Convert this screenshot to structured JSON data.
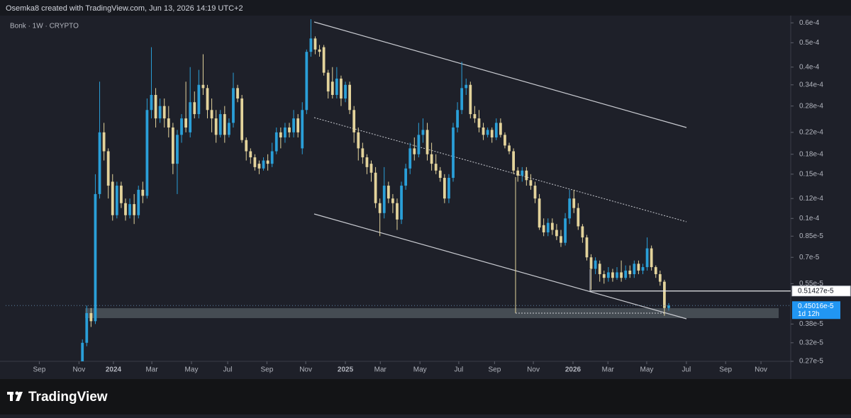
{
  "header": "Osemka8 created with TradingView.com, Jun 13, 2026 14:19 UTC+2",
  "footer": "TradingView",
  "chart_data": {
    "type": "candlestick",
    "title": "Bonk · 1W · CRYPTO",
    "log_scale": true,
    "up_color": "#2a9fd8",
    "down_color": "#e3d39b",
    "open": [
      2.6e-06,
      3.2e-06,
      4.2e-06,
      3.9e-06,
      1.25e-05,
      2.2e-05,
      1.85e-05,
      1.4e-05,
      1.03e-05,
      1.35e-05,
      1.15e-05,
      1.03e-05,
      1.14e-05,
      1.03e-05,
      1.3e-05,
      1.23e-05,
      2.7e-05,
      3.1e-05,
      2.5e-05,
      2.8e-05,
      2.5e-05,
      2.3e-05,
      1.65e-05,
      2.15e-05,
      2.5e-05,
      2.2e-05,
      2.9e-05,
      2.6e-05,
      3.4e-05,
      3.3e-05,
      2.7e-05,
      2.5e-05,
      2.15e-05,
      2.6e-05,
      2.15e-05,
      2.4e-05,
      3.3e-05,
      3e-05,
      2.05e-05,
      1.85e-05,
      1.75e-05,
      1.65e-05,
      1.58e-05,
      1.7e-05,
      1.65e-05,
      1.85e-05,
      2.2e-05,
      2.1e-05,
      2.3e-05,
      2.2e-05,
      2.5e-05,
      1.9e-05,
      2.7e-05,
      4.6e-05,
      5.2e-05,
      4.7e-05,
      4.8e-05,
      3.8e-05,
      3.5e-05,
      3.1e-05,
      3.6e-05,
      3e-05,
      3.4e-05,
      2.7e-05,
      2.2e-05,
      1.9e-05,
      1.75e-05,
      1.65e-05,
      1.52e-05,
      1.15e-05,
      1.05e-05,
      1.35e-05,
      1.2e-05,
      1.15e-05,
      9.9e-06,
      1.35e-05,
      1.58e-05,
      1.9e-05,
      1.8e-05,
      2.15e-05,
      2.25e-05,
      1.8e-05,
      1.65e-05,
      1.55e-05,
      1.45e-05,
      1.2e-05,
      1.45e-05,
      2.3e-05,
      2.7e-05,
      3.3e-05,
      3.4e-05,
      2.6e-05,
      2.5e-05,
      2.3e-05,
      2.15e-05,
      2.25e-05,
      2.1e-05,
      2.4e-05,
      2.15e-05,
      1.95e-05,
      1.85e-05,
      1.55e-05,
      1.48e-05,
      1.55e-05,
      1.42e-05,
      1.35e-05,
      1.2e-05,
      9.4e-06,
      8.8e-06,
      9.6e-06,
      9e-06,
      8.5e-06,
      8e-06,
      1e-05,
      1.2e-05,
      1.1e-05,
      9.3e-06,
      8.4e-06,
      7e-06,
      6.3e-06,
      6.6e-06,
      6e-06,
      5.8e-06,
      6.1e-06,
      5.8e-06,
      6.1e-06,
      5.8e-06,
      6.2e-06,
      6e-06,
      6.6e-06,
      6.2e-06,
      6.4e-06,
      7.6e-06,
      6.4e-06,
      6e-06,
      5.6e-06,
      4.4e-06
    ],
    "high": [
      3.3e-06,
      4.5e-06,
      4.4e-06,
      1.5e-05,
      3.5e-05,
      2.4e-05,
      1.9e-05,
      1.5e-05,
      1.4e-05,
      1.4e-05,
      1.2e-05,
      1.2e-05,
      1.25e-05,
      1.35e-05,
      1.4e-05,
      3e-05,
      4.8e-05,
      3.3e-05,
      3e-05,
      3e-05,
      2.8e-05,
      2.4e-05,
      2.25e-05,
      2.6e-05,
      3.5e-05,
      4e-05,
      3.2e-05,
      3.9e-05,
      4.5e-05,
      3.4e-05,
      3e-05,
      2.7e-05,
      2.7e-05,
      2.8e-05,
      2.5e-05,
      3.8e-05,
      3.4e-05,
      3.1e-05,
      2.1e-05,
      1.9e-05,
      1.8e-05,
      1.7e-05,
      1.75e-05,
      1.8e-05,
      2e-05,
      2.3e-05,
      2.3e-05,
      2.4e-05,
      2.4e-05,
      2.7e-05,
      2.6e-05,
      2.9e-05,
      4.7e-05,
      6.2e-05,
      5.3e-05,
      4.9e-05,
      4.9e-05,
      3.9e-05,
      4e-05,
      4e-05,
      3.7e-05,
      3.5e-05,
      3.5e-05,
      2.8e-05,
      2.3e-05,
      2e-05,
      1.8e-05,
      1.7e-05,
      1.6e-05,
      1.2e-05,
      1.6e-05,
      1.4e-05,
      1.25e-05,
      1.2e-05,
      1.4e-05,
      1.65e-05,
      2e-05,
      2.1e-05,
      2.4e-05,
      2.5e-05,
      2.4e-05,
      2e-05,
      1.8e-05,
      1.6e-05,
      1.5e-05,
      1.5e-05,
      2.4e-05,
      2.9e-05,
      4.2e-05,
      3.6e-05,
      3.5e-05,
      2.8e-05,
      2.7e-05,
      2.4e-05,
      2.3e-05,
      2.3e-05,
      2.5e-05,
      2.5e-05,
      2.2e-05,
      2e-05,
      1.9e-05,
      1.6e-05,
      1.6e-05,
      1.6e-05,
      1.5e-05,
      1.4e-05,
      1.25e-05,
      1e-05,
      1e-05,
      1e-05,
      9.5e-06,
      9e-06,
      1.05e-05,
      1.3e-05,
      1.3e-05,
      1.15e-05,
      9.5e-06,
      8.6e-06,
      7.2e-06,
      7e-06,
      6.8e-06,
      6.2e-06,
      6.4e-06,
      6.3e-06,
      6.4e-06,
      6.8e-06,
      6.5e-06,
      6.5e-06,
      6.8e-06,
      6.8e-06,
      6.6e-06,
      8.4e-06,
      7.8e-06,
      6.5e-06,
      6.2e-06,
      5.7e-06,
      4.6e-06
    ],
    "low": [
      2.5e-06,
      3.1e-06,
      3.7e-06,
      3.8e-06,
      1.2e-05,
      1.7e-05,
      1.2e-05,
      9.8e-06,
      1e-05,
      1.1e-05,
      9.8e-06,
      1e-05,
      9.5e-06,
      1e-05,
      1.15e-05,
      1.2e-05,
      2.5e-05,
      2.3e-05,
      2.4e-05,
      2.3e-05,
      2.1e-05,
      1.5e-05,
      1.25e-05,
      2e-05,
      2.2e-05,
      2.1e-05,
      2.5e-05,
      2.5e-05,
      3.1e-05,
      2.5e-05,
      2.2e-05,
      2e-05,
      2.1e-05,
      2e-05,
      2.1e-05,
      2.3e-05,
      2.9e-05,
      2e-05,
      1.7e-05,
      1.65e-05,
      1.55e-05,
      1.5e-05,
      1.55e-05,
      1.55e-05,
      1.6e-05,
      1.8e-05,
      1.9e-05,
      2e-05,
      2.1e-05,
      2.1e-05,
      2.1e-05,
      1.8e-05,
      2.6e-05,
      4.4e-05,
      4.5e-05,
      4.4e-05,
      3.7e-05,
      3e-05,
      3e-05,
      3e-05,
      2.8e-05,
      2.9e-05,
      2.6e-05,
      2e-05,
      1.7e-05,
      1.65e-05,
      1.5e-05,
      1.4e-05,
      1.1e-05,
      8.5e-06,
      1e-05,
      1.15e-05,
      1.05e-05,
      9e-06,
      9.5e-06,
      1.3e-05,
      1.5e-05,
      1.7e-05,
      1.75e-05,
      2e-05,
      1.7e-05,
      1.55e-05,
      1.5e-05,
      1.4e-05,
      1.15e-05,
      1.15e-05,
      1.4e-05,
      2.2e-05,
      2.6e-05,
      3.1e-05,
      2.5e-05,
      2.4e-05,
      2.2e-05,
      2.05e-05,
      2.1e-05,
      2e-05,
      2.05e-05,
      2.1e-05,
      1.9e-05,
      1.8e-05,
      1.5e-05,
      1.4e-05,
      1.4e-05,
      1.35e-05,
      1.3e-05,
      1.15e-05,
      9e-06,
      8.5e-06,
      8.5e-06,
      8.6e-06,
      8.2e-06,
      7.7e-06,
      7.8e-06,
      9.5e-06,
      1.05e-05,
      9e-06,
      8e-06,
      6.8e-06,
      5.2e-06,
      6e-06,
      5.6e-06,
      5.5e-06,
      5.6e-06,
      5.6e-06,
      5.7e-06,
      5.6e-06,
      5.7e-06,
      5.8e-06,
      5.8e-06,
      6e-06,
      6e-06,
      6.2e-06,
      6.2e-06,
      5.8e-06,
      5.4e-06,
      4.1e-06,
      4.3e-06
    ],
    "close": [
      3.2e-06,
      4.2e-06,
      3.9e-06,
      1.25e-05,
      2.2e-05,
      1.85e-05,
      1.35e-05,
      1.03e-05,
      1.35e-05,
      1.15e-05,
      1.03e-05,
      1.14e-05,
      1.03e-05,
      1.3e-05,
      1.23e-05,
      2.7e-05,
      3.1e-05,
      2.5e-05,
      2.8e-05,
      2.5e-05,
      2.3e-05,
      1.65e-05,
      2.15e-05,
      2.5e-05,
      2.3e-05,
      2.9e-05,
      2.6e-05,
      3.4e-05,
      3.3e-05,
      2.7e-05,
      2.5e-05,
      2.15e-05,
      2.6e-05,
      2.15e-05,
      2.4e-05,
      3.3e-05,
      3e-05,
      2.05e-05,
      1.85e-05,
      1.75e-05,
      1.6e-05,
      1.58e-05,
      1.7e-05,
      1.65e-05,
      1.85e-05,
      2.2e-05,
      2.1e-05,
      2.3e-05,
      2.2e-05,
      2.5e-05,
      2.2e-05,
      2.7e-05,
      4.6e-05,
      5.2e-05,
      4.7e-05,
      4.6e-05,
      3.8e-05,
      3.2e-05,
      3.1e-05,
      3.6e-05,
      3e-05,
      3.4e-05,
      2.7e-05,
      2.2e-05,
      1.9e-05,
      1.75e-05,
      1.6e-05,
      1.52e-05,
      1.15e-05,
      1.05e-05,
      1.35e-05,
      1.2e-05,
      1.15e-05,
      9.9e-06,
      1.35e-05,
      1.58e-05,
      1.9e-05,
      1.8e-05,
      2.15e-05,
      2.25e-05,
      1.8e-05,
      1.65e-05,
      1.55e-05,
      1.45e-05,
      1.2e-05,
      1.45e-05,
      2.3e-05,
      2.7e-05,
      3.3e-05,
      3.4e-05,
      2.6e-05,
      2.5e-05,
      2.3e-05,
      2.15e-05,
      2.25e-05,
      2.1e-05,
      2.4e-05,
      2.15e-05,
      1.95e-05,
      1.85e-05,
      1.55e-05,
      1.48e-05,
      1.55e-05,
      1.42e-05,
      1.35e-05,
      1.2e-05,
      9.2e-06,
      8.8e-06,
      9.6e-06,
      9e-06,
      8.5e-06,
      8e-06,
      1e-05,
      1.2e-05,
      1.1e-05,
      9.3e-06,
      8.4e-06,
      7e-06,
      6.3e-06,
      6.8e-06,
      6e-06,
      5.8e-06,
      6.1e-06,
      5.8e-06,
      6.1e-06,
      5.8e-06,
      6.2e-06,
      6e-06,
      6.6e-06,
      6.2e-06,
      6.4e-06,
      7.6e-06,
      6.4e-06,
      6e-06,
      5.6e-06,
      4.4e-06,
      4.5016e-06
    ],
    "xlim": [
      -17.8,
      164.3
    ],
    "xticks": [
      {
        "value": -10.0,
        "label": "Sep"
      },
      {
        "value": -0.8,
        "label": "Nov"
      },
      {
        "value": 7.2,
        "label": "2024"
      },
      {
        "value": 16.1,
        "label": "Mar"
      },
      {
        "value": 25.3,
        "label": "May"
      },
      {
        "value": 33.7,
        "label": "Jul"
      },
      {
        "value": 42.8,
        "label": "Sep"
      },
      {
        "value": 51.8,
        "label": "Nov"
      },
      {
        "value": 61.0,
        "label": "2025"
      },
      {
        "value": 69.1,
        "label": "Mar"
      },
      {
        "value": 78.3,
        "label": "May"
      },
      {
        "value": 87.3,
        "label": "Jul"
      },
      {
        "value": 95.6,
        "label": "Sep"
      },
      {
        "value": 104.6,
        "label": "Nov"
      },
      {
        "value": 113.8,
        "label": "2026"
      },
      {
        "value": 121.9,
        "label": "Mar"
      },
      {
        "value": 130.9,
        "label": "May"
      },
      {
        "value": 140.1,
        "label": "Jul"
      },
      {
        "value": 149.2,
        "label": "Sep"
      },
      {
        "value": 157.4,
        "label": "Nov"
      }
    ],
    "ylim": [
      2.7e-06,
      6.33e-05
    ],
    "yticks": [
      {
        "value": 6e-05,
        "label": "0.6e-4"
      },
      {
        "value": 5e-05,
        "label": "0.5e-4"
      },
      {
        "value": 4e-05,
        "label": "0.4e-4"
      },
      {
        "value": 3.4e-05,
        "label": "0.34e-4"
      },
      {
        "value": 2.8e-05,
        "label": "0.28e-4"
      },
      {
        "value": 2.2e-05,
        "label": "0.22e-4"
      },
      {
        "value": 1.8e-05,
        "label": "0.18e-4"
      },
      {
        "value": 1.5e-05,
        "label": "0.15e-4"
      },
      {
        "value": 1.2e-05,
        "label": "0.12e-4"
      },
      {
        "value": 1e-05,
        "label": "0.1e-4"
      },
      {
        "value": 8.5e-06,
        "label": "0.85e-5"
      },
      {
        "value": 7e-06,
        "label": "0.7e-5"
      },
      {
        "value": 5.5e-06,
        "label": "0.55e-5"
      },
      {
        "value": 3.8e-06,
        "label": "0.38e-5"
      },
      {
        "value": 3.2e-06,
        "label": "0.32e-5"
      },
      {
        "value": 2.7e-06,
        "label": "0.27e-5"
      }
    ],
    "price_lines": [
      {
        "value": 5.1427e-06,
        "label": "0.51427e-5"
      },
      {
        "value": 4.5016e-06,
        "label": "0.45016e-5",
        "countdown": "1d 12h"
      }
    ]
  }
}
